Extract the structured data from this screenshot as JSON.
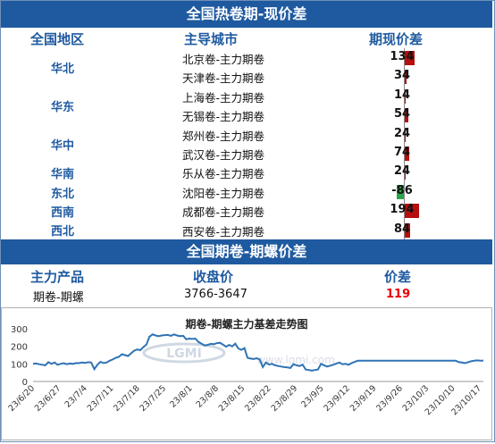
{
  "section1": {
    "title": "全国热卷期-现价差",
    "headers": {
      "region": "全国地区",
      "city": "主导城市",
      "spread": "期现价差"
    },
    "regions": [
      {
        "name": "华北",
        "rows": [
          0,
          1
        ]
      },
      {
        "name": "华东",
        "rows": [
          2,
          3
        ]
      },
      {
        "name": "华中",
        "rows": [
          4,
          5
        ]
      },
      {
        "name": "华南",
        "rows": [
          6
        ]
      },
      {
        "name": "东北",
        "rows": [
          7
        ]
      },
      {
        "name": "西南",
        "rows": [
          8
        ]
      },
      {
        "name": "西北",
        "rows": [
          9
        ]
      }
    ],
    "rows": [
      {
        "city": "北京卷-主力期卷",
        "spread": "134",
        "value": 134
      },
      {
        "city": "天津卷-主力期卷",
        "spread": "34",
        "value": 34
      },
      {
        "city": "上海卷-主力期卷",
        "spread": "14",
        "value": 14
      },
      {
        "city": "无锡卷-主力期卷",
        "spread": "54",
        "value": 54
      },
      {
        "city": "郑州卷-主力期卷",
        "spread": "24",
        "value": 24
      },
      {
        "city": "武汉卷-主力期卷",
        "spread": "74",
        "value": 74
      },
      {
        "city": "乐从卷-主力期卷",
        "spread": "24",
        "value": 24
      },
      {
        "city": "沈阳卷-主力期卷",
        "spread": "-86",
        "value": -86
      },
      {
        "city": "成都卷-主力期卷",
        "spread": "194",
        "value": 194
      },
      {
        "city": "西安卷-主力期卷",
        "spread": "84",
        "value": 84
      }
    ]
  },
  "section2": {
    "title": "全国期卷-期螺价差",
    "headers": {
      "product": "主力产品",
      "close": "收盘价",
      "spread": "价差"
    },
    "row": {
      "product": "期卷-期螺",
      "close": "3766-3647",
      "spread": "119"
    }
  },
  "colors": {
    "banner": "#1f5aa0",
    "positive": "#b50f0f",
    "negative": "#2aa44a",
    "line": "#2f73b5",
    "highlight": "#e60000"
  },
  "chart_data": {
    "type": "line",
    "title": "期卷-期螺主力基差走势图",
    "watermark": "www.lgmi.com",
    "ylim": [
      0,
      300
    ],
    "yticks": [
      0,
      100,
      200,
      300
    ],
    "xtick_labels": [
      "23/6/20",
      "23/6/27",
      "23/7/4",
      "23/7/11",
      "23/7/18",
      "23/7/25",
      "23/8/1",
      "23/8/8",
      "23/8/15",
      "23/8/22",
      "23/8/29",
      "23/9/5",
      "23/9/12",
      "23/9/19",
      "23/9/26",
      "23/10/3",
      "23/10/10",
      "23/10/17"
    ],
    "grid": false,
    "series": [
      {
        "values": [
          100,
          102,
          98,
          95,
          92,
          110,
          100,
          108,
          95,
          100,
          104,
          98,
          102,
          100,
          105,
          104,
          108,
          106,
          110,
          108,
          70,
          95,
          112,
          105,
          108,
          118,
          125,
          135,
          140,
          155,
          150,
          145,
          160,
          175,
          182,
          178,
          195,
          210,
          255,
          268,
          262,
          258,
          262,
          264,
          265,
          260,
          268,
          262,
          258,
          260,
          240,
          244,
          242,
          244,
          225,
          215,
          205,
          208,
          214,
          212,
          218,
          220,
          210,
          198,
          208,
          200,
          215,
          188,
          180,
          190,
          135,
          130,
          128,
          132,
          125,
          82,
          108,
          96,
          100,
          92,
          88,
          85,
          82,
          80,
          77,
          98,
          92,
          88,
          96,
          68,
          65,
          62,
          65,
          68,
          100,
          92,
          85,
          90,
          95,
          102,
          108,
          98,
          100,
          95,
          105,
          112,
          118,
          118,
          118,
          118,
          118,
          118,
          118,
          118,
          118,
          118,
          118,
          118,
          118,
          118,
          118,
          118,
          118,
          118,
          118,
          118,
          118,
          118,
          118,
          118,
          118,
          118,
          118,
          118,
          118,
          118,
          118,
          118,
          118,
          110,
          108,
          104,
          110,
          115,
          118,
          120,
          118,
          119
        ]
      }
    ]
  }
}
